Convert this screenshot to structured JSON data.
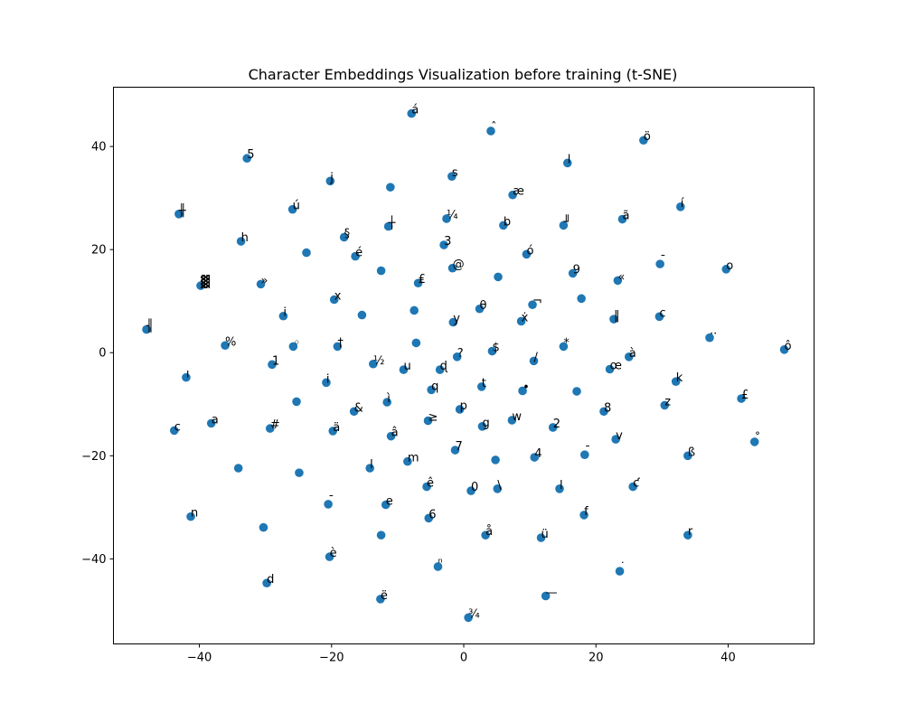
{
  "chart_data": {
    "type": "scatter",
    "title": "Character Embeddings Visualization before training (t-SNE)",
    "xlabel": "",
    "ylabel": "",
    "xlim": [
      -53,
      53
    ],
    "ylim": [
      -56.5,
      51.5
    ],
    "xticks": [
      -40,
      -20,
      0,
      20,
      40
    ],
    "yticks": [
      -40,
      -20,
      0,
      20,
      40
    ],
    "tick_labels_x": [
      "−40",
      "−20",
      "0",
      "20",
      "40"
    ],
    "tick_labels_y": [
      "−40",
      "−20",
      "0",
      "20",
      "40"
    ],
    "grid": false,
    "marker_color": "#1f77b4",
    "points": [
      {
        "x": -7.9,
        "y": 46.4,
        "label": "á"
      },
      {
        "x": 4.1,
        "y": 43.0,
        "label": "ˆ"
      },
      {
        "x": 27.2,
        "y": 41.2,
        "label": "ö"
      },
      {
        "x": -32.8,
        "y": 37.7,
        "label": "5"
      },
      {
        "x": 15.7,
        "y": 36.8,
        "label": "l"
      },
      {
        "x": -20.2,
        "y": 33.3,
        "label": "j"
      },
      {
        "x": -1.8,
        "y": 34.2,
        "label": "s"
      },
      {
        "x": -11.1,
        "y": 32.1,
        "label": ""
      },
      {
        "x": 7.4,
        "y": 30.6,
        "label": "æ"
      },
      {
        "x": -25.9,
        "y": 27.8,
        "label": "ú"
      },
      {
        "x": -43.1,
        "y": 26.9,
        "label": "╫"
      },
      {
        "x": 32.8,
        "y": 28.3,
        "label": "í"
      },
      {
        "x": -2.6,
        "y": 26.0,
        "label": "¼"
      },
      {
        "x": -11.4,
        "y": 24.5,
        "label": "┼"
      },
      {
        "x": 6.0,
        "y": 24.7,
        "label": "b"
      },
      {
        "x": 15.1,
        "y": 24.7,
        "label": "╜"
      },
      {
        "x": 24.0,
        "y": 25.9,
        "label": "ã"
      },
      {
        "x": -33.7,
        "y": 21.6,
        "label": "h"
      },
      {
        "x": -18.1,
        "y": 22.4,
        "label": "§"
      },
      {
        "x": -3.0,
        "y": 20.9,
        "label": "3"
      },
      {
        "x": -23.8,
        "y": 19.4,
        "label": ""
      },
      {
        "x": -16.4,
        "y": 18.7,
        "label": "é"
      },
      {
        "x": 9.5,
        "y": 19.1,
        "label": "ó"
      },
      {
        "x": -1.7,
        "y": 16.4,
        "label": "@"
      },
      {
        "x": 29.7,
        "y": 17.2,
        "label": "ˉ"
      },
      {
        "x": 39.7,
        "y": 16.2,
        "label": "o"
      },
      {
        "x": -12.5,
        "y": 15.9,
        "label": ""
      },
      {
        "x": 16.5,
        "y": 15.4,
        "label": "9"
      },
      {
        "x": 5.2,
        "y": 14.7,
        "label": ""
      },
      {
        "x": -39.8,
        "y": 13.0,
        "label": "▓"
      },
      {
        "x": -30.7,
        "y": 13.3,
        "label": "»"
      },
      {
        "x": -6.9,
        "y": 13.5,
        "label": "₤"
      },
      {
        "x": 23.3,
        "y": 14.0,
        "label": "«"
      },
      {
        "x": -19.6,
        "y": 10.3,
        "label": "x"
      },
      {
        "x": 17.8,
        "y": 10.5,
        "label": ""
      },
      {
        "x": 10.4,
        "y": 9.3,
        "label": "¬"
      },
      {
        "x": -7.5,
        "y": 8.2,
        "label": ""
      },
      {
        "x": 2.4,
        "y": 8.5,
        "label": "θ"
      },
      {
        "x": -27.3,
        "y": 7.1,
        "label": "i"
      },
      {
        "x": -15.4,
        "y": 7.3,
        "label": ""
      },
      {
        "x": 22.7,
        "y": 6.5,
        "label": "‖"
      },
      {
        "x": 29.6,
        "y": 7.0,
        "label": "c"
      },
      {
        "x": -1.6,
        "y": 5.9,
        "label": "y"
      },
      {
        "x": 8.7,
        "y": 6.1,
        "label": "ẋ"
      },
      {
        "x": -48.0,
        "y": 4.5,
        "label": "╢"
      },
      {
        "x": 37.2,
        "y": 2.9,
        "label": "··"
      },
      {
        "x": -36.1,
        "y": 1.4,
        "label": "%"
      },
      {
        "x": -25.8,
        "y": 1.2,
        "label": "◦"
      },
      {
        "x": -19.1,
        "y": 1.2,
        "label": "†"
      },
      {
        "x": -7.2,
        "y": 1.9,
        "label": ""
      },
      {
        "x": 4.3,
        "y": 0.3,
        "label": "$"
      },
      {
        "x": 15.1,
        "y": 1.2,
        "label": "*"
      },
      {
        "x": 48.5,
        "y": 0.6,
        "label": "ô"
      },
      {
        "x": -1.0,
        "y": -0.8,
        "label": "?"
      },
      {
        "x": 10.6,
        "y": -1.6,
        "label": "/"
      },
      {
        "x": 25.0,
        "y": -0.8,
        "label": "à"
      },
      {
        "x": -29.0,
        "y": -2.3,
        "label": "1"
      },
      {
        "x": -13.7,
        "y": -2.2,
        "label": "½"
      },
      {
        "x": -9.1,
        "y": -3.3,
        "label": "u"
      },
      {
        "x": -3.6,
        "y": -3.3,
        "label": "ɖ"
      },
      {
        "x": 22.1,
        "y": -3.2,
        "label": "œ"
      },
      {
        "x": -42.0,
        "y": -4.8,
        "label": "ı"
      },
      {
        "x": -20.8,
        "y": -5.8,
        "label": "i"
      },
      {
        "x": 32.1,
        "y": -5.6,
        "label": "k"
      },
      {
        "x": 2.7,
        "y": -6.6,
        "label": "t"
      },
      {
        "x": -4.9,
        "y": -7.2,
        "label": "q"
      },
      {
        "x": 8.9,
        "y": -7.4,
        "label": "•"
      },
      {
        "x": 17.1,
        "y": -7.5,
        "label": ""
      },
      {
        "x": -25.3,
        "y": -9.5,
        "label": ""
      },
      {
        "x": -11.6,
        "y": -9.6,
        "label": "ì"
      },
      {
        "x": 42.0,
        "y": -8.9,
        "label": "£"
      },
      {
        "x": 30.4,
        "y": -10.2,
        "label": "z"
      },
      {
        "x": -16.6,
        "y": -11.4,
        "label": "&"
      },
      {
        "x": -0.6,
        "y": -11.0,
        "label": "p"
      },
      {
        "x": 21.2,
        "y": -11.4,
        "label": "8"
      },
      {
        "x": -38.2,
        "y": -13.7,
        "label": "a"
      },
      {
        "x": -5.4,
        "y": -13.2,
        "label": "≥"
      },
      {
        "x": 7.3,
        "y": -13.1,
        "label": "w"
      },
      {
        "x": -43.8,
        "y": -15.1,
        "label": "c"
      },
      {
        "x": -29.3,
        "y": -14.7,
        "label": "#"
      },
      {
        "x": -19.8,
        "y": -15.2,
        "label": "ä"
      },
      {
        "x": 2.8,
        "y": -14.3,
        "label": "g"
      },
      {
        "x": 13.5,
        "y": -14.5,
        "label": "2"
      },
      {
        "x": -11.0,
        "y": -16.2,
        "label": "â"
      },
      {
        "x": 23.0,
        "y": -16.8,
        "label": "v"
      },
      {
        "x": 44.0,
        "y": -17.3,
        "label": "˚"
      },
      {
        "x": -1.3,
        "y": -18.9,
        "label": "7"
      },
      {
        "x": 18.3,
        "y": -19.8,
        "label": "¯"
      },
      {
        "x": 33.9,
        "y": -20.0,
        "label": "ß"
      },
      {
        "x": 10.7,
        "y": -20.3,
        "label": "4"
      },
      {
        "x": -8.5,
        "y": -21.1,
        "label": "m"
      },
      {
        "x": 4.8,
        "y": -20.8,
        "label": ""
      },
      {
        "x": -34.1,
        "y": -22.4,
        "label": ""
      },
      {
        "x": -14.2,
        "y": -22.4,
        "label": "l"
      },
      {
        "x": -24.9,
        "y": -23.3,
        "label": ""
      },
      {
        "x": -5.6,
        "y": -26.0,
        "label": "ê"
      },
      {
        "x": 1.1,
        "y": -26.8,
        "label": "0"
      },
      {
        "x": 5.1,
        "y": -26.4,
        "label": "\\"
      },
      {
        "x": 14.5,
        "y": -26.4,
        "label": "l"
      },
      {
        "x": 25.6,
        "y": -26.0,
        "label": "ƈ"
      },
      {
        "x": -20.5,
        "y": -29.4,
        "label": "ˉ"
      },
      {
        "x": -11.8,
        "y": -29.5,
        "label": "e"
      },
      {
        "x": -41.3,
        "y": -31.8,
        "label": "n"
      },
      {
        "x": -5.3,
        "y": -32.1,
        "label": "6"
      },
      {
        "x": 18.2,
        "y": -31.5,
        "label": "f"
      },
      {
        "x": -30.3,
        "y": -33.9,
        "label": ""
      },
      {
        "x": -12.5,
        "y": -35.4,
        "label": ""
      },
      {
        "x": 3.3,
        "y": -35.4,
        "label": "å"
      },
      {
        "x": 11.7,
        "y": -35.9,
        "label": "ü"
      },
      {
        "x": 33.9,
        "y": -35.4,
        "label": "r"
      },
      {
        "x": -20.3,
        "y": -39.6,
        "label": "è"
      },
      {
        "x": -3.9,
        "y": -41.5,
        "label": "ⁿ"
      },
      {
        "x": 23.6,
        "y": -42.4,
        "label": "˙"
      },
      {
        "x": -29.8,
        "y": -44.7,
        "label": "d"
      },
      {
        "x": 12.4,
        "y": -47.2,
        "label": "—"
      },
      {
        "x": -12.6,
        "y": -47.8,
        "label": "ë"
      },
      {
        "x": 0.7,
        "y": -51.4,
        "label": "¾"
      }
    ]
  }
}
